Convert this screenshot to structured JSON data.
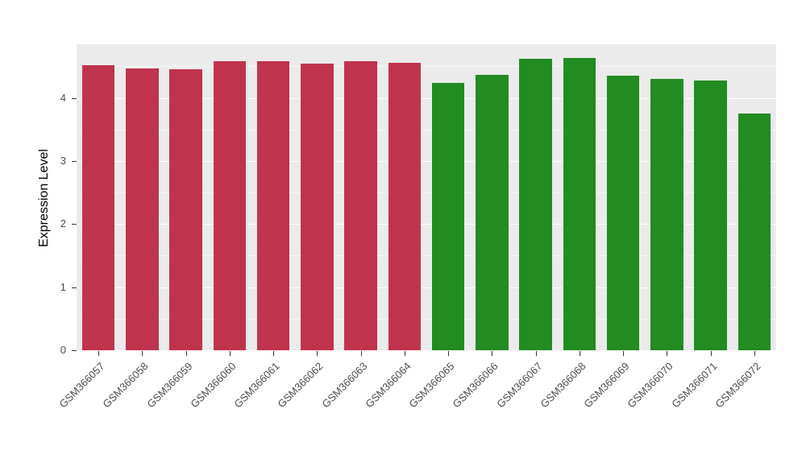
{
  "figure": {
    "background": "#FFFFFF",
    "panel_background": "#EBEBEB",
    "grid_major_color": "#FFFFFF",
    "grid_minor_color": "#FFFFFF",
    "tick_mark_color": "#333333",
    "tick_label_color": "#4D4D4D",
    "axis_title_color": "#000000"
  },
  "chart_data": {
    "type": "bar",
    "title": "",
    "xlabel": "",
    "ylabel": "Expression Level",
    "categories": [
      "GSM366057",
      "GSM366058",
      "GSM366059",
      "GSM366060",
      "GSM366061",
      "GSM366062",
      "GSM366063",
      "GSM366064",
      "GSM366065",
      "GSM366066",
      "GSM366067",
      "GSM366068",
      "GSM366069",
      "GSM366070",
      "GSM366071",
      "GSM366072"
    ],
    "values": [
      4.52,
      4.47,
      4.45,
      4.58,
      4.58,
      4.54,
      4.58,
      4.56,
      4.24,
      4.37,
      4.62,
      4.63,
      4.35,
      4.3,
      4.27,
      3.75
    ],
    "bar_colors": [
      "#C0334D",
      "#C0334D",
      "#C0334D",
      "#C0334D",
      "#C0334D",
      "#C0334D",
      "#C0334D",
      "#C0334D",
      "#228B22",
      "#228B22",
      "#228B22",
      "#228B22",
      "#228B22",
      "#228B22",
      "#228B22",
      "#228B22"
    ],
    "group_color_red": "#C0334D",
    "group_color_green": "#228B22",
    "ylim": [
      0,
      4.85
    ],
    "yticks": [
      0,
      1,
      2,
      3,
      4
    ],
    "minor_tick_step": 0.5,
    "grid": true,
    "legend_position": "none",
    "x_label_angle_deg": 45,
    "bar_width_fraction": 0.75
  }
}
